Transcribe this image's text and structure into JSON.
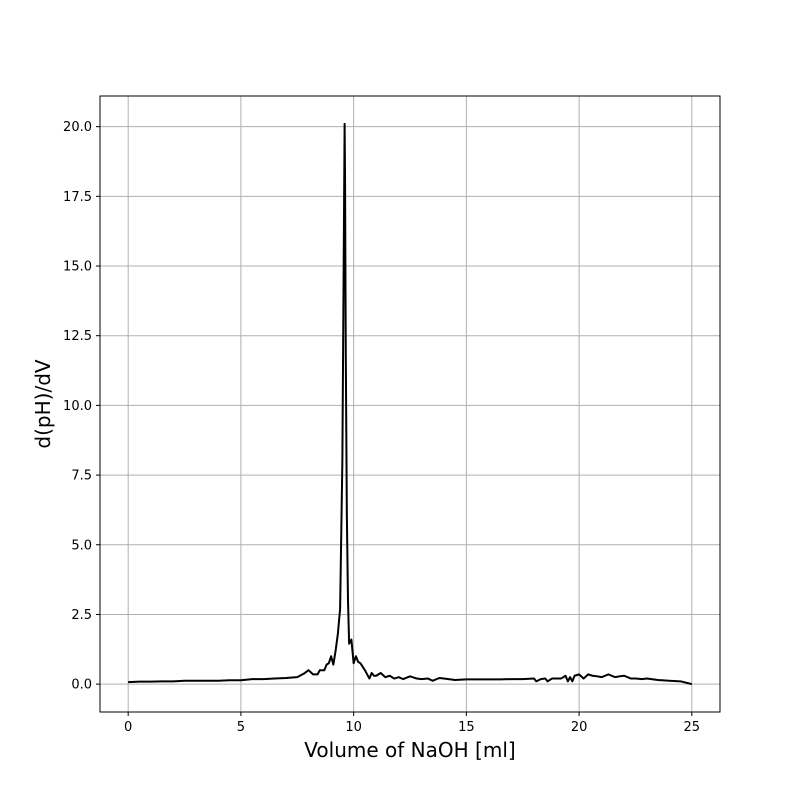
{
  "chart_data": {
    "type": "line",
    "title": "",
    "xlabel": "Volume of NaOH [ml]",
    "ylabel": "d(pH)/dV",
    "xlim": [
      -1.25,
      26.25
    ],
    "ylim": [
      -1.0,
      21.1
    ],
    "xticks": [
      0,
      5,
      10,
      15,
      20,
      25
    ],
    "xtick_labels": [
      "0",
      "5",
      "10",
      "15",
      "20",
      "25"
    ],
    "yticks": [
      0.0,
      2.5,
      5.0,
      7.5,
      10.0,
      12.5,
      15.0,
      17.5,
      20.0
    ],
    "ytick_labels": [
      "0.0",
      "2.5",
      "5.0",
      "7.5",
      "10.0",
      "12.5",
      "15.0",
      "17.5",
      "20.0"
    ],
    "grid": true,
    "line_color": "#000000",
    "grid_color": "#b0b0b0",
    "series": [
      {
        "x": [
          0,
          0.5,
          1.0,
          1.5,
          2.0,
          2.5,
          3.0,
          3.5,
          4.0,
          4.5,
          5.0,
          5.5,
          6.0,
          6.5,
          7.0,
          7.5,
          7.8,
          8.0,
          8.2,
          8.4,
          8.5,
          8.7,
          8.8,
          8.9,
          9.0,
          9.1,
          9.2,
          9.3,
          9.4,
          9.5,
          9.6,
          9.62,
          9.65,
          9.7,
          9.75,
          9.8,
          9.9,
          10.0,
          10.1,
          10.2,
          10.3,
          10.5,
          10.7,
          10.8,
          10.9,
          11.0,
          11.2,
          11.4,
          11.6,
          11.8,
          12.0,
          12.2,
          12.5,
          12.8,
          13.0,
          13.3,
          13.5,
          13.8,
          14.0,
          14.5,
          15.0,
          15.5,
          16.0,
          16.5,
          17.0,
          17.5,
          18.0,
          18.1,
          18.3,
          18.5,
          18.6,
          18.8,
          19.0,
          19.2,
          19.4,
          19.5,
          19.6,
          19.7,
          19.8,
          20.0,
          20.2,
          20.4,
          20.6,
          20.8,
          21.0,
          21.3,
          21.6,
          21.8,
          22.0,
          22.3,
          22.5,
          22.8,
          23.0,
          23.5,
          24.0,
          24.5,
          25.0
        ],
        "y": [
          0.07,
          0.09,
          0.09,
          0.1,
          0.1,
          0.12,
          0.12,
          0.12,
          0.12,
          0.14,
          0.14,
          0.18,
          0.18,
          0.2,
          0.22,
          0.25,
          0.38,
          0.5,
          0.35,
          0.35,
          0.5,
          0.5,
          0.7,
          0.75,
          1.0,
          0.7,
          1.2,
          1.8,
          2.7,
          8.0,
          20.1,
          18.0,
          12.0,
          6.0,
          3.0,
          1.45,
          1.6,
          0.75,
          1.0,
          0.8,
          0.75,
          0.5,
          0.2,
          0.4,
          0.3,
          0.3,
          0.4,
          0.25,
          0.3,
          0.2,
          0.25,
          0.18,
          0.28,
          0.2,
          0.18,
          0.2,
          0.12,
          0.22,
          0.2,
          0.15,
          0.17,
          0.17,
          0.17,
          0.17,
          0.18,
          0.18,
          0.2,
          0.1,
          0.18,
          0.2,
          0.1,
          0.2,
          0.2,
          0.2,
          0.3,
          0.1,
          0.25,
          0.1,
          0.3,
          0.35,
          0.2,
          0.35,
          0.3,
          0.28,
          0.25,
          0.35,
          0.25,
          0.28,
          0.3,
          0.2,
          0.2,
          0.18,
          0.2,
          0.15,
          0.12,
          0.1,
          0.0
        ]
      }
    ]
  }
}
